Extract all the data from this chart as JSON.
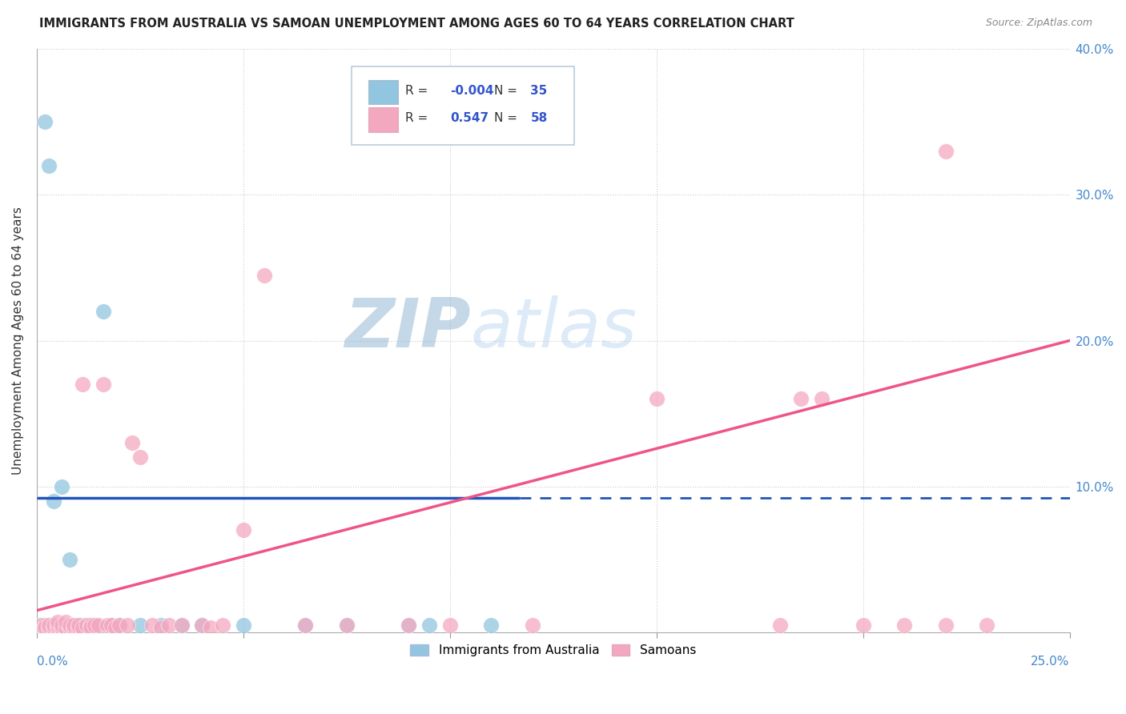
{
  "title": "IMMIGRANTS FROM AUSTRALIA VS SAMOAN UNEMPLOYMENT AMONG AGES 60 TO 64 YEARS CORRELATION CHART",
  "source": "Source: ZipAtlas.com",
  "ylabel": "Unemployment Among Ages 60 to 64 years",
  "legend1_label": "Immigrants from Australia",
  "legend2_label": "Samoans",
  "R1": "-0.004",
  "N1": "35",
  "R2": "0.547",
  "N2": "58",
  "blue_color": "#92C5E0",
  "pink_color": "#F4A8C0",
  "blue_line_color": "#2255BB",
  "pink_line_color": "#EE5588",
  "xlim": [
    0.0,
    0.25
  ],
  "ylim": [
    0.0,
    0.4
  ],
  "grid_color": "#CCCCCC",
  "background_color": "#FFFFFF",
  "blue_x": [
    0.002,
    0.003,
    0.004,
    0.004,
    0.005,
    0.005,
    0.006,
    0.006,
    0.007,
    0.007,
    0.008,
    0.008,
    0.009,
    0.01,
    0.01,
    0.011,
    0.012,
    0.013,
    0.014,
    0.016,
    0.018,
    0.02,
    0.025,
    0.03,
    0.035,
    0.04,
    0.05,
    0.065,
    0.075,
    0.09,
    0.095,
    0.11,
    0.001,
    0.003,
    0.005
  ],
  "blue_y": [
    0.35,
    0.32,
    0.005,
    0.09,
    0.005,
    0.005,
    0.005,
    0.1,
    0.005,
    0.005,
    0.05,
    0.005,
    0.005,
    0.005,
    0.005,
    0.005,
    0.005,
    0.005,
    0.005,
    0.22,
    0.005,
    0.005,
    0.005,
    0.005,
    0.005,
    0.005,
    0.005,
    0.005,
    0.005,
    0.005,
    0.005,
    0.005,
    0.005,
    0.005,
    0.005
  ],
  "pink_x": [
    0.001,
    0.002,
    0.002,
    0.003,
    0.003,
    0.004,
    0.004,
    0.005,
    0.005,
    0.005,
    0.006,
    0.006,
    0.007,
    0.007,
    0.008,
    0.008,
    0.009,
    0.009,
    0.01,
    0.01,
    0.011,
    0.011,
    0.012,
    0.013,
    0.013,
    0.014,
    0.015,
    0.016,
    0.017,
    0.018,
    0.019,
    0.02,
    0.022,
    0.023,
    0.025,
    0.028,
    0.03,
    0.032,
    0.035,
    0.04,
    0.042,
    0.045,
    0.05,
    0.055,
    0.065,
    0.075,
    0.09,
    0.1,
    0.12,
    0.15,
    0.18,
    0.185,
    0.19,
    0.2,
    0.21,
    0.22,
    0.22,
    0.23
  ],
  "pink_y": [
    0.005,
    0.005,
    0.003,
    0.003,
    0.005,
    0.003,
    0.005,
    0.003,
    0.005,
    0.007,
    0.003,
    0.005,
    0.003,
    0.007,
    0.003,
    0.005,
    0.003,
    0.005,
    0.003,
    0.005,
    0.003,
    0.17,
    0.005,
    0.005,
    0.003,
    0.005,
    0.005,
    0.17,
    0.005,
    0.005,
    0.003,
    0.005,
    0.005,
    0.13,
    0.12,
    0.005,
    0.003,
    0.005,
    0.005,
    0.005,
    0.003,
    0.005,
    0.07,
    0.245,
    0.005,
    0.005,
    0.005,
    0.005,
    0.005,
    0.16,
    0.005,
    0.16,
    0.16,
    0.005,
    0.005,
    0.005,
    0.33,
    0.005
  ],
  "blue_trend_x": [
    0.0,
    0.117,
    0.117,
    0.25
  ],
  "blue_trend_y": [
    0.092,
    0.092,
    0.092,
    0.091
  ],
  "blue_trend_solid_end": 0.117,
  "pink_trend_x0": 0.0,
  "pink_trend_y0": 0.015,
  "pink_trend_x1": 0.25,
  "pink_trend_y1": 0.2
}
